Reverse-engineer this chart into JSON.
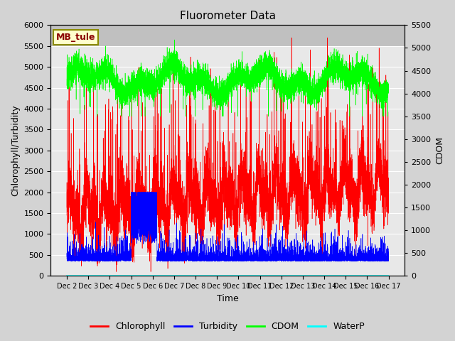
{
  "title": "Fluorometer Data",
  "xlabel": "Time",
  "ylabel_left": "Chlorophyll/Turbidity",
  "ylabel_right": "CDOM",
  "annotation": "MB_tule",
  "annotation_color": "#8B0000",
  "annotation_bg": "#FFFFCC",
  "annotation_edge": "#8B8B00",
  "ylim_left": [
    0,
    6000
  ],
  "ylim_right": [
    0,
    5500
  ],
  "yticks_left": [
    0,
    500,
    1000,
    1500,
    2000,
    2500,
    3000,
    3500,
    4000,
    4500,
    5000,
    5500,
    6000
  ],
  "yticks_right": [
    0,
    500,
    1000,
    1500,
    2000,
    2500,
    3000,
    3500,
    4000,
    4500,
    5000,
    5500
  ],
  "xtick_labels": [
    "Dec 2",
    "Dec 3",
    "Dec 4",
    "Dec 5",
    "Dec 6",
    "Dec 7",
    "Dec 8",
    "Dec 9",
    "Dec 10",
    "Dec 11",
    "Dec 12",
    "Dec 13",
    "Dec 14",
    "Dec 15",
    "Dec 16",
    "Dec 17"
  ],
  "legend_entries": [
    "Chlorophyll",
    "Turbidity",
    "CDOM",
    "WaterP"
  ],
  "legend_colors": [
    "red",
    "blue",
    "lime",
    "cyan"
  ],
  "fig_bg_color": "#d3d3d3",
  "plot_bg_color": "#e8e8e8",
  "plot_bg_top": "#c8c8c8",
  "grid_color": "white",
  "n_points": 7200,
  "seed": 99
}
